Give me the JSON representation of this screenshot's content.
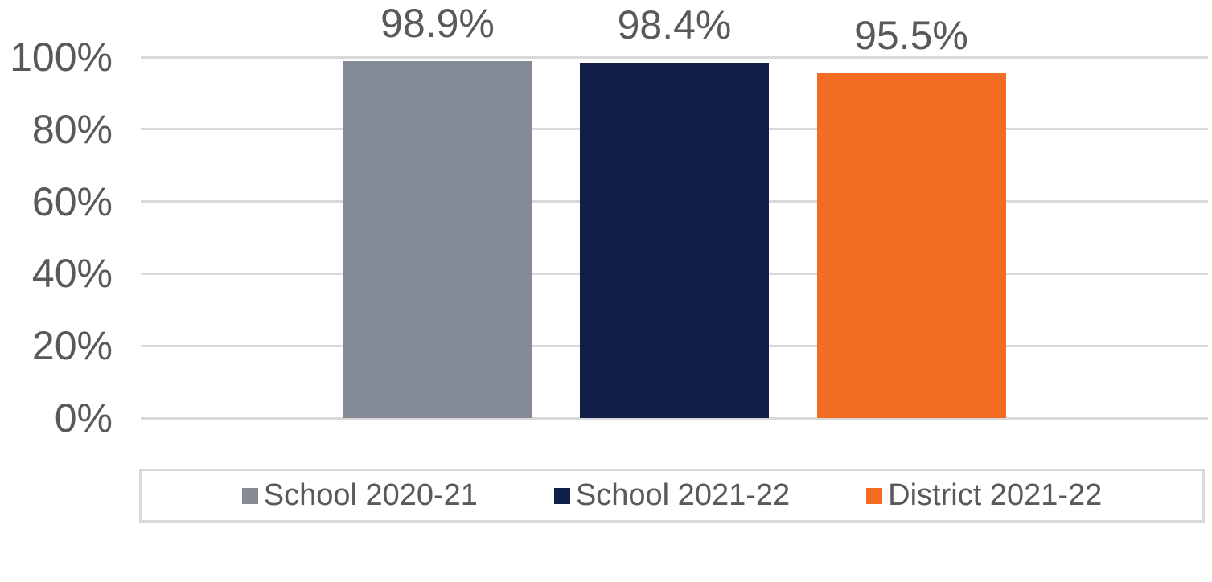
{
  "colors": {
    "background": "#FFFFFF",
    "gridline": "#D9D9D9",
    "legend_border": "#D9D9D9",
    "text": "#595959"
  },
  "chart_data": {
    "type": "bar",
    "title": "",
    "xlabel": "",
    "ylabel": "",
    "ylim": [
      0,
      100
    ],
    "grid": true,
    "legend_position": "bottom",
    "categories": [
      ""
    ],
    "series": [
      {
        "name": "School 2020-21",
        "value": 98.9,
        "label": "98.9%",
        "color": "#848B96"
      },
      {
        "name": "School 2021-22",
        "value": 98.4,
        "label": "98.4%",
        "color": "#111F47"
      },
      {
        "name": "District 2021-22",
        "value": 95.5,
        "label": "95.5%",
        "color": "#F26C23"
      }
    ],
    "yticks": [
      {
        "value": 0,
        "label": "0%"
      },
      {
        "value": 20,
        "label": "20%"
      },
      {
        "value": 40,
        "label": "40%"
      },
      {
        "value": 60,
        "label": "60%"
      },
      {
        "value": 80,
        "label": "80%"
      },
      {
        "value": 100,
        "label": "100%"
      }
    ]
  }
}
